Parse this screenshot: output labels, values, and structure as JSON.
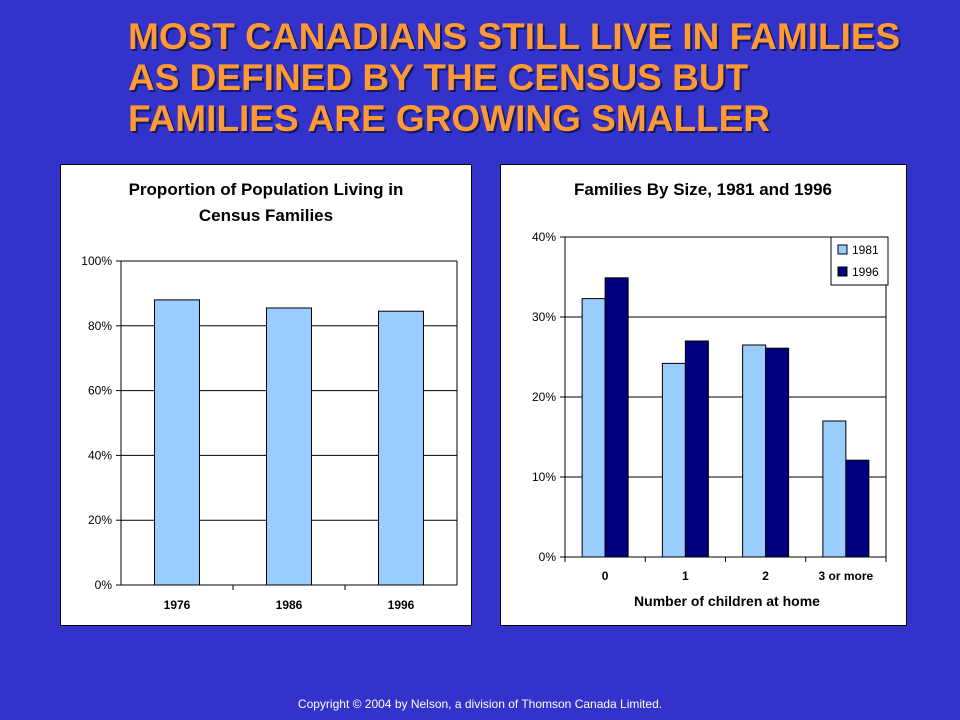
{
  "slide": {
    "title_lines": [
      "MOST CANADIANS STILL LIVE IN FAMILIES",
      "AS DEFINED BY THE CENSUS BUT",
      "FAMILIES ARE GROWING SMALLER"
    ],
    "copyright": "Copyright © 2004 by Nelson, a division of Thomson Canada Limited."
  },
  "colors": {
    "background": "#3333cc",
    "title": "#ff9933",
    "bar_1981": "#99ccff",
    "bar_1996": "#000080"
  },
  "chart_data": [
    {
      "type": "bar",
      "title_lines": [
        "Proportion of Population Living in",
        "Census Families"
      ],
      "categories": [
        "1976",
        "1986",
        "1996"
      ],
      "values": [
        88,
        85.5,
        84.5
      ],
      "ylim": [
        0,
        100
      ],
      "yticks": [
        "0%",
        "20%",
        "40%",
        "60%",
        "80%",
        "100%"
      ],
      "xlabel": "",
      "ylabel": "",
      "grid": true,
      "legend": "none"
    },
    {
      "type": "bar",
      "title_lines": [
        "Families By Size, 1981 and 1996"
      ],
      "categories": [
        "0",
        "1",
        "2",
        "3 or more"
      ],
      "series": [
        {
          "name": "1981",
          "values": [
            32.3,
            24.2,
            26.5,
            17.0
          ]
        },
        {
          "name": "1996",
          "values": [
            34.9,
            27.0,
            26.1,
            12.1
          ]
        }
      ],
      "ylim": [
        0,
        40
      ],
      "yticks": [
        "0%",
        "10%",
        "20%",
        "30%",
        "40%"
      ],
      "xlabel": "Number of children at home",
      "ylabel": "",
      "grid": true,
      "legend": "top-right"
    }
  ]
}
